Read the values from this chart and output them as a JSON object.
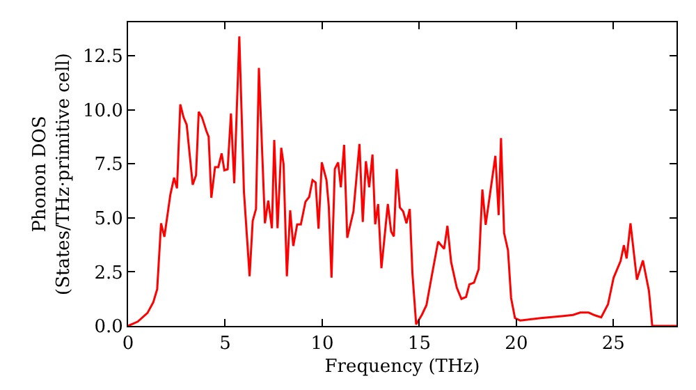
{
  "chart_data": {
    "type": "line",
    "xlabel": "Frequency (THz)",
    "ylabel": "Phonon DOS\n(States/THz·primitive cell)",
    "x": [
      0,
      0.5,
      1.0,
      1.3,
      1.5,
      1.7,
      1.87,
      2.18,
      2.37,
      2.52,
      2.69,
      2.86,
      3.02,
      3.33,
      3.5,
      3.64,
      3.81,
      4.05,
      4.15,
      4.29,
      4.48,
      4.65,
      4.82,
      4.96,
      5.13,
      5.3,
      5.47,
      5.73,
      5.97,
      6.26,
      6.42,
      6.59,
      6.74,
      7.05,
      7.22,
      7.41,
      7.53,
      7.7,
      7.89,
      8.01,
      8.18,
      8.35,
      8.51,
      8.71,
      8.9,
      9.14,
      9.33,
      9.5,
      9.66,
      9.81,
      9.98,
      10.22,
      10.34,
      10.48,
      10.65,
      10.82,
      10.96,
      11.13,
      11.29,
      11.61,
      11.92,
      12.09,
      12.25,
      12.42,
      12.59,
      12.73,
      12.88,
      13.05,
      13.38,
      13.55,
      13.69,
      13.84,
      14.0,
      14.17,
      14.34,
      14.51,
      14.65,
      14.84,
      15.13,
      15.37,
      15.66,
      15.97,
      16.28,
      16.45,
      16.64,
      16.93,
      17.17,
      17.41,
      17.58,
      17.82,
      18.06,
      18.25,
      18.42,
      18.92,
      19.09,
      19.21,
      19.37,
      19.57,
      19.73,
      19.93,
      20.2,
      21.25,
      22.33,
      22.92,
      23.29,
      23.72,
      24.05,
      24.37,
      24.72,
      25.01,
      25.37,
      25.54,
      25.68,
      25.88,
      26.21,
      26.52,
      26.83,
      27.0,
      28.25
    ],
    "series": [
      {
        "color": "#ff0000",
        "values": [
          0,
          0.2,
          0.6,
          1.1,
          1.7,
          4.75,
          4.12,
          6.08,
          6.86,
          6.37,
          10.25,
          9.65,
          9.31,
          6.53,
          6.97,
          9.91,
          9.65,
          8.98,
          8.76,
          5.93,
          7.35,
          7.35,
          7.98,
          7.2,
          7.25,
          9.83,
          6.6,
          13.4,
          6.2,
          2.3,
          4.86,
          5.41,
          11.94,
          4.75,
          5.8,
          4.52,
          8.6,
          4.52,
          8.24,
          7.49,
          2.3,
          5.35,
          3.7,
          4.7,
          4.7,
          5.75,
          5.97,
          6.75,
          6.64,
          4.5,
          7.57,
          6.75,
          5.53,
          2.23,
          7.26,
          7.57,
          6.42,
          8.38,
          4.08,
          5.3,
          8.42,
          4.81,
          7.62,
          6.42,
          7.93,
          4.7,
          5.64,
          2.67,
          5.64,
          4.37,
          4.14,
          7.26,
          5.48,
          5.3,
          4.75,
          5.41,
          2.4,
          0.07,
          0.51,
          0.96,
          2.4,
          3.9,
          3.57,
          4.63,
          2.96,
          1.78,
          1.25,
          1.34,
          1.92,
          2.0,
          2.63,
          6.31,
          4.68,
          7.87,
          5.13,
          8.69,
          4.3,
          3.5,
          1.29,
          0.36,
          0.25,
          0.36,
          0.45,
          0.51,
          0.62,
          0.62,
          0.49,
          0.4,
          1.0,
          2.23,
          3.0,
          3.74,
          3.12,
          4.75,
          2.14,
          3.03,
          1.62,
          0,
          0
        ]
      }
    ],
    "xlim": [
      0,
      28.25
    ],
    "ylim": [
      0,
      14.05
    ],
    "xticks": [
      0,
      5,
      10,
      15,
      20,
      25
    ],
    "yticks": [
      {
        "value": 0,
        "label": "0.0"
      },
      {
        "value": 2.5,
        "label": "2.5"
      },
      {
        "value": 5,
        "label": "5.0"
      },
      {
        "value": 7.5,
        "label": "7.5"
      },
      {
        "value": 10,
        "label": "10.0"
      },
      {
        "value": 12.5,
        "label": "12.5"
      }
    ],
    "legend": false,
    "marker": "none",
    "line_style": "solid"
  }
}
